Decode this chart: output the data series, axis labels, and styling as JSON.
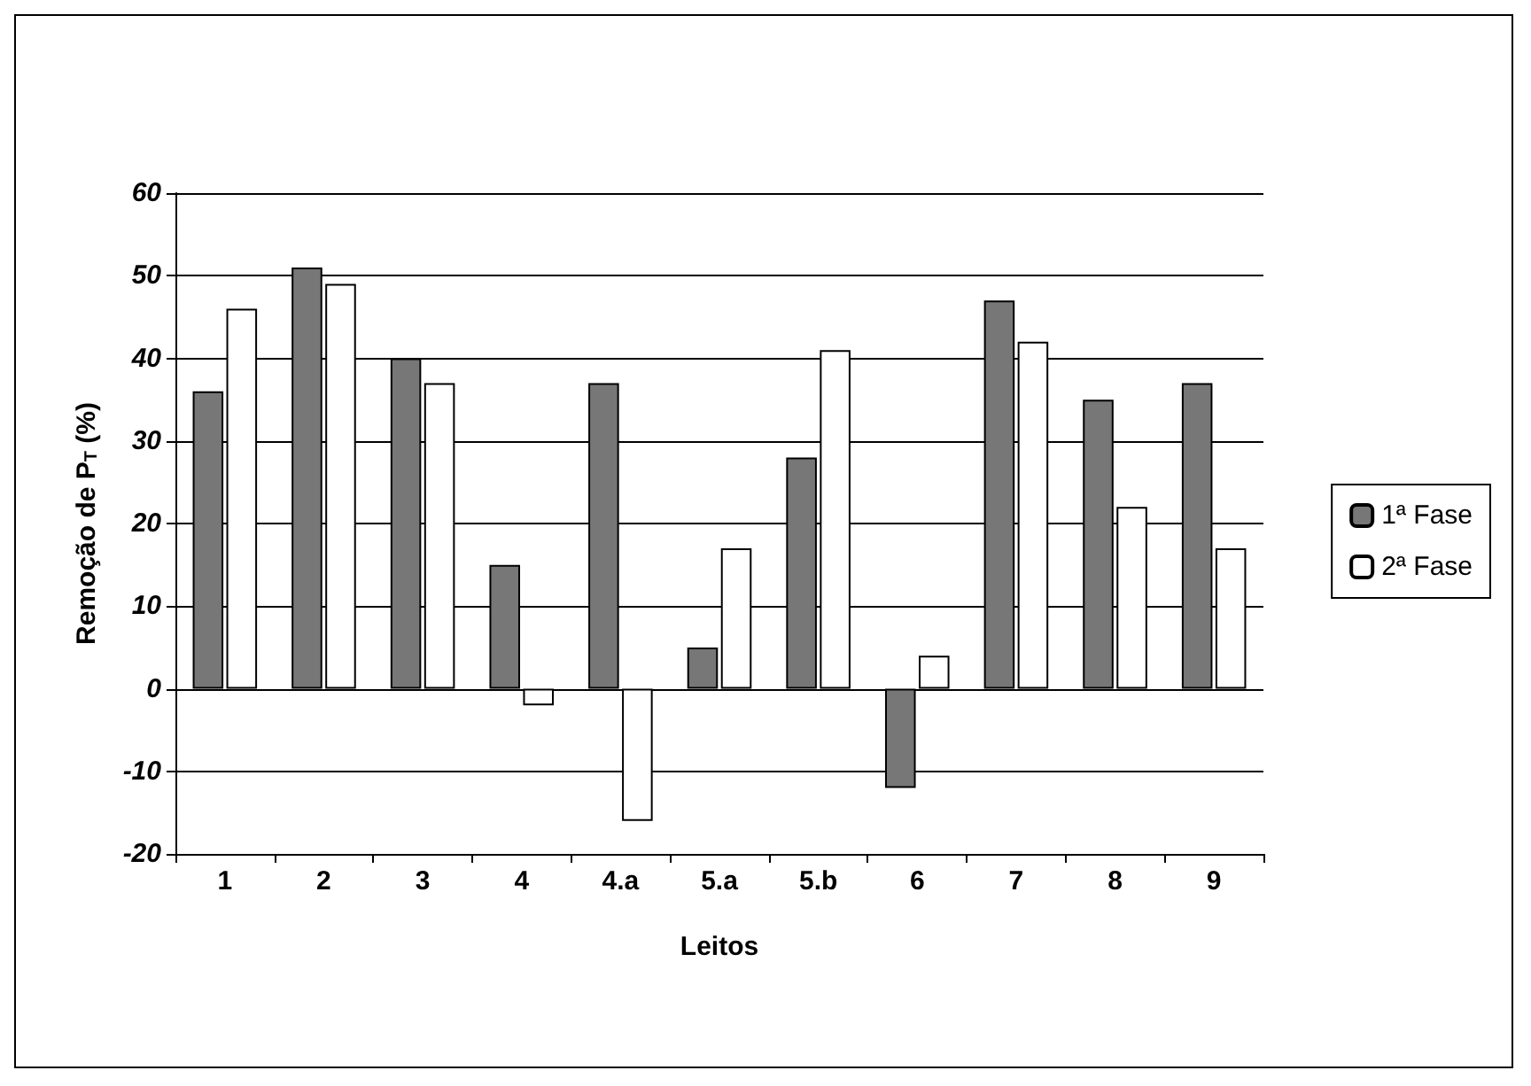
{
  "chart_data": {
    "type": "bar",
    "xlabel": "Leitos",
    "ylabel": "Remoção de P$_{T}$ (%)",
    "categories": [
      "1",
      "2",
      "3",
      "4",
      "4.a",
      "5.a",
      "5.b",
      "6",
      "7",
      "8",
      "9"
    ],
    "series": [
      {
        "name": "1ª Fase",
        "color": "#777777",
        "values": [
          36,
          51,
          40,
          15,
          37,
          5,
          28,
          -12,
          47,
          35,
          37
        ]
      },
      {
        "name": "2ª Fase",
        "color": "#ffffff",
        "values": [
          46,
          49,
          37,
          -2,
          -16,
          17,
          41,
          4,
          42,
          22,
          17
        ]
      }
    ],
    "ylim": [
      -20,
      60
    ],
    "yticks": [
      -20,
      -10,
      0,
      10,
      20,
      30,
      40,
      50,
      60
    ],
    "grid": "y",
    "legend": "right"
  }
}
